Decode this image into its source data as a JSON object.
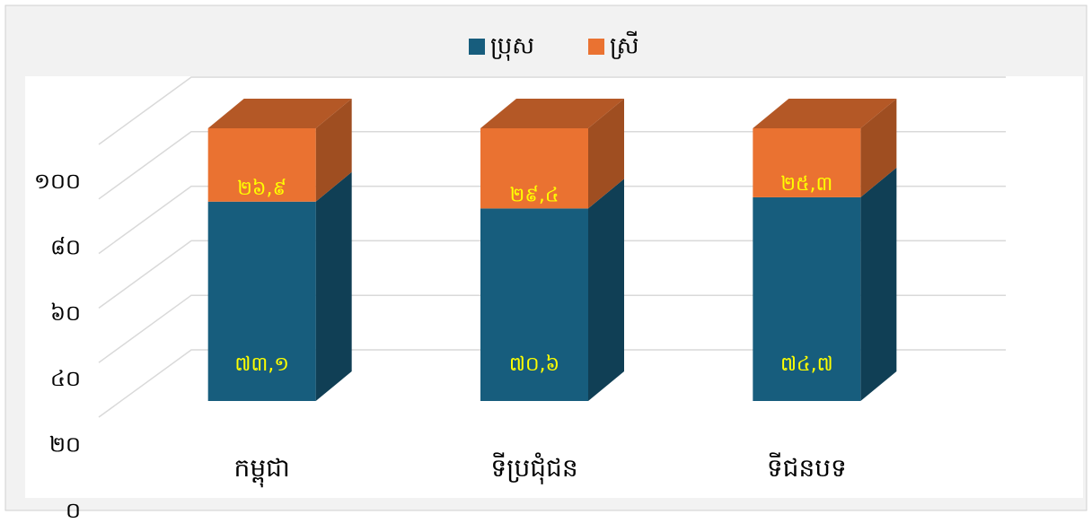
{
  "chart_data": {
    "type": "bar3d_stacked",
    "categories": [
      "កម្ពុជា",
      "ទីប្រជុំជន",
      "ទីជនបទ"
    ],
    "series": [
      {
        "name": "ប្រុស",
        "color": "#175d7d",
        "values": [
          73.1,
          70.6,
          74.7
        ],
        "value_labels": [
          "៧៣,១",
          "៧០,៦",
          "៧៤,៧"
        ]
      },
      {
        "name": "ស្រី",
        "color": "#ea7231",
        "values": [
          26.9,
          29.4,
          25.3
        ],
        "value_labels": [
          "២៦,៩",
          "២៩,៤",
          "២៥,៣"
        ]
      }
    ],
    "ylim": [
      0,
      100
    ],
    "yticks": [
      {
        "value": 0,
        "label": "០"
      },
      {
        "value": 20,
        "label": "២០"
      },
      {
        "value": 40,
        "label": "៤០"
      },
      {
        "value": 60,
        "label": "៦០"
      },
      {
        "value": 80,
        "label": "៨០"
      },
      {
        "value": 100,
        "label": "១០០"
      }
    ],
    "grid": true,
    "legend": "top"
  }
}
